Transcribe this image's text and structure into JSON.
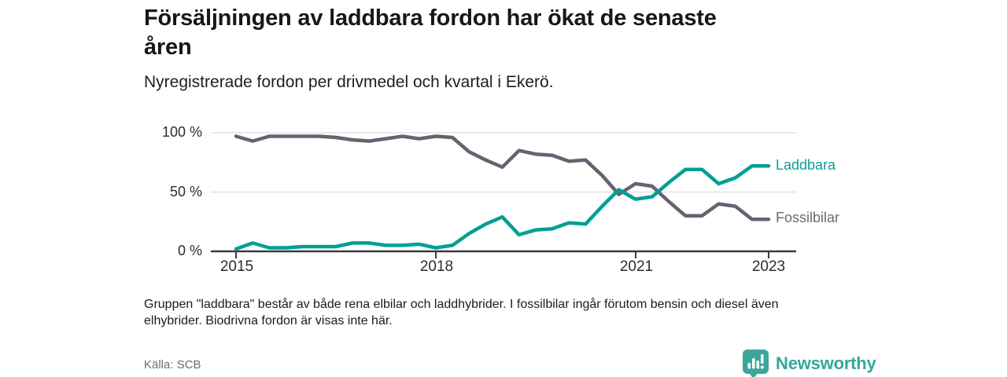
{
  "header": {
    "title_lines": [
      "Försäljningen av laddbara fordon har ökat de senaste",
      "åren"
    ],
    "subtitle": "Nyregistrerade fordon per drivmedel och kvartal i Ekerö."
  },
  "chart_data": {
    "type": "line",
    "x_unit": "quarter",
    "x_range": [
      "2015 Q1",
      "2023 Q1"
    ],
    "x_tick_labels": [
      "2015",
      "2018",
      "2021",
      "2023"
    ],
    "x_tick_indices": [
      0,
      12,
      24,
      32
    ],
    "y_tick_labels": [
      "100 %",
      "50 %",
      "0 %"
    ],
    "ylim": [
      0,
      100
    ],
    "grid": "horizontal",
    "legend_position": "right-of-line-ends",
    "series": [
      {
        "name": "Fossilbilar",
        "color": "#666270",
        "label_color": "#6e6a76",
        "values": [
          97,
          93,
          97,
          97,
          97,
          97,
          96,
          94,
          93,
          95,
          97,
          95,
          97,
          96,
          84,
          77,
          71,
          85,
          82,
          81,
          76,
          77,
          64,
          48,
          57,
          55,
          42,
          30,
          30,
          40,
          38,
          27,
          27
        ]
      },
      {
        "name": "Laddbara",
        "color": "#00a092",
        "label_color": "#0aa093",
        "values": [
          2,
          7,
          3,
          3,
          4,
          4,
          4,
          7,
          7,
          5,
          5,
          6,
          3,
          5,
          15,
          23,
          29,
          14,
          18,
          19,
          24,
          23,
          38,
          52,
          44,
          46,
          58,
          69,
          69,
          57,
          62,
          72,
          72
        ]
      }
    ]
  },
  "footnote_lines": [
    "Gruppen \"laddbara\" består av både rena elbilar och laddhybrider. I fossilbilar ingår förutom bensin och diesel även",
    "elhybrider. Biodrivna fordon är visas inte här."
  ],
  "source": "Källa: SCB",
  "logo": {
    "text": "Newsworthy",
    "color": "#35a79c",
    "icon": "newsworthy-chart-bubble-icon"
  }
}
